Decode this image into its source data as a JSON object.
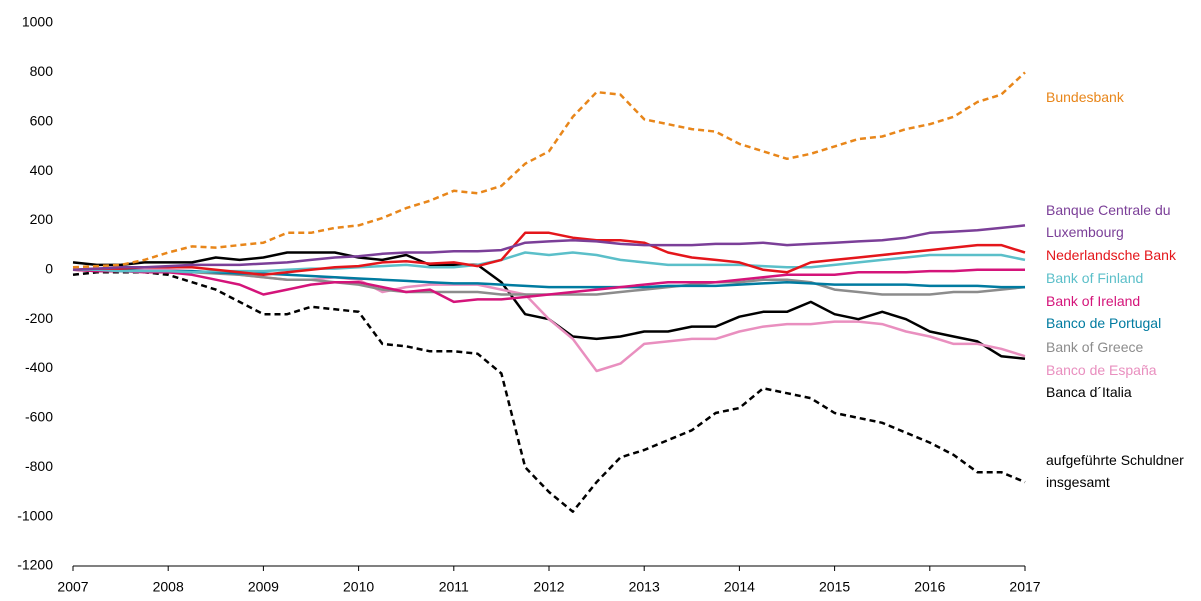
{
  "chart_data": {
    "type": "line",
    "x": [
      2007,
      2007.25,
      2007.5,
      2007.75,
      2008,
      2008.25,
      2008.5,
      2008.75,
      2009,
      2009.25,
      2009.5,
      2009.75,
      2010,
      2010.25,
      2010.5,
      2010.75,
      2011,
      2011.25,
      2011.5,
      2011.75,
      2012,
      2012.25,
      2012.5,
      2012.75,
      2013,
      2013.25,
      2013.5,
      2013.75,
      2014,
      2014.25,
      2014.5,
      2014.75,
      2015,
      2015.25,
      2015.5,
      2015.75,
      2016,
      2016.25,
      2016.5,
      2016.75,
      2017
    ],
    "xlim": [
      2007,
      2017
    ],
    "xticks": [
      2007,
      2008,
      2009,
      2010,
      2011,
      2012,
      2013,
      2014,
      2015,
      2016,
      2017
    ],
    "ylim": [
      -1200,
      1000
    ],
    "yticks": [
      -1200,
      -1000,
      -800,
      -600,
      -400,
      -200,
      0,
      200,
      400,
      600,
      800,
      1000
    ],
    "grid": false,
    "series": [
      {
        "name": "Bundesbank",
        "color": "#e8861a",
        "dashed": true,
        "values": [
          10,
          15,
          20,
          40,
          70,
          95,
          90,
          100,
          110,
          150,
          150,
          170,
          180,
          210,
          250,
          280,
          320,
          310,
          340,
          430,
          480,
          620,
          720,
          710,
          610,
          590,
          570,
          560,
          510,
          480,
          450,
          470,
          500,
          530,
          540,
          570,
          590,
          620,
          680,
          710,
          800
        ]
      },
      {
        "name": "Banque Centrale du Luxembourg",
        "color": "#7b3f98",
        "dashed": false,
        "values": [
          0,
          5,
          10,
          10,
          15,
          20,
          20,
          20,
          25,
          30,
          40,
          50,
          55,
          65,
          70,
          70,
          75,
          75,
          80,
          110,
          115,
          120,
          115,
          105,
          100,
          100,
          100,
          105,
          105,
          110,
          100,
          105,
          110,
          115,
          120,
          130,
          150,
          155,
          160,
          170,
          180
        ]
      },
      {
        "name": "Nederlandsche Bank",
        "color": "#e4161b",
        "dashed": false,
        "values": [
          0,
          5,
          5,
          10,
          10,
          10,
          0,
          -10,
          -20,
          -10,
          0,
          10,
          15,
          30,
          35,
          25,
          30,
          15,
          40,
          150,
          150,
          130,
          120,
          120,
          110,
          70,
          50,
          40,
          30,
          0,
          -10,
          30,
          40,
          50,
          60,
          70,
          80,
          90,
          100,
          100,
          70
        ]
      },
      {
        "name": "Bank of Finland",
        "color": "#5bbfc9",
        "dashed": false,
        "values": [
          0,
          0,
          -5,
          -5,
          -5,
          -10,
          -5,
          -5,
          -5,
          0,
          5,
          5,
          10,
          15,
          20,
          10,
          10,
          20,
          40,
          70,
          60,
          70,
          60,
          40,
          30,
          20,
          20,
          20,
          20,
          15,
          10,
          10,
          20,
          30,
          40,
          50,
          60,
          60,
          60,
          60,
          40
        ]
      },
      {
        "name": "Bank of Ireland",
        "color": "#d4147a",
        "dashed": false,
        "values": [
          0,
          -5,
          -5,
          -10,
          -10,
          -20,
          -40,
          -60,
          -100,
          -80,
          -60,
          -50,
          -50,
          -70,
          -90,
          -80,
          -130,
          -120,
          -120,
          -110,
          -100,
          -90,
          -80,
          -70,
          -60,
          -50,
          -50,
          -50,
          -40,
          -30,
          -20,
          -20,
          -20,
          -10,
          -10,
          -10,
          -5,
          -5,
          0,
          0,
          0
        ]
      },
      {
        "name": "Banco de Portugal",
        "color": "#007ba0",
        "dashed": false,
        "values": [
          0,
          0,
          0,
          -5,
          -5,
          -5,
          -10,
          -15,
          -15,
          -20,
          -25,
          -30,
          -35,
          -40,
          -45,
          -50,
          -55,
          -55,
          -60,
          -65,
          -70,
          -70,
          -70,
          -70,
          -70,
          -65,
          -65,
          -65,
          -60,
          -55,
          -50,
          -55,
          -60,
          -60,
          -60,
          -60,
          -65,
          -65,
          -65,
          -70,
          -70
        ]
      },
      {
        "name": "Bank of Greece",
        "color": "#8c8c8c",
        "dashed": false,
        "values": [
          0,
          -5,
          -5,
          -5,
          -10,
          -10,
          -15,
          -20,
          -30,
          -40,
          -40,
          -50,
          -60,
          -80,
          -90,
          -90,
          -90,
          -90,
          -100,
          -100,
          -100,
          -100,
          -100,
          -90,
          -80,
          -70,
          -60,
          -50,
          -50,
          -40,
          -40,
          -50,
          -80,
          -90,
          -100,
          -100,
          -100,
          -90,
          -90,
          -80,
          -70
        ]
      },
      {
        "name": "Banco de España",
        "color": "#e98fbf",
        "dashed": false,
        "values": [
          0,
          0,
          5,
          5,
          0,
          -5,
          -10,
          -20,
          -30,
          -40,
          -40,
          -30,
          -40,
          -90,
          -70,
          -60,
          -60,
          -60,
          -80,
          -100,
          -200,
          -280,
          -410,
          -380,
          -300,
          -290,
          -280,
          -280,
          -250,
          -230,
          -220,
          -220,
          -210,
          -210,
          -220,
          -250,
          -270,
          -300,
          -300,
          -320,
          -350
        ]
      },
      {
        "name": "Banca d´Italia",
        "color": "#000000",
        "dashed": false,
        "values": [
          30,
          20,
          20,
          30,
          30,
          30,
          50,
          40,
          50,
          70,
          70,
          70,
          50,
          40,
          60,
          20,
          20,
          20,
          -50,
          -180,
          -200,
          -270,
          -280,
          -270,
          -250,
          -250,
          -230,
          -230,
          -190,
          -170,
          -170,
          -130,
          -180,
          -200,
          -170,
          -200,
          -250,
          -270,
          -290,
          -350,
          -360
        ]
      },
      {
        "name": "aufgeführte Schuldner insgesamt",
        "color": "#000000",
        "dashed": true,
        "values": [
          -20,
          -10,
          -10,
          -10,
          -20,
          -50,
          -80,
          -130,
          -180,
          -180,
          -150,
          -160,
          -170,
          -300,
          -310,
          -330,
          -330,
          -340,
          -420,
          -800,
          -900,
          -980,
          -860,
          -760,
          -730,
          -690,
          -650,
          -580,
          -560,
          -480,
          -500,
          -520,
          -580,
          -600,
          -620,
          -660,
          -700,
          -750,
          -820,
          -820,
          -860
        ]
      }
    ]
  }
}
